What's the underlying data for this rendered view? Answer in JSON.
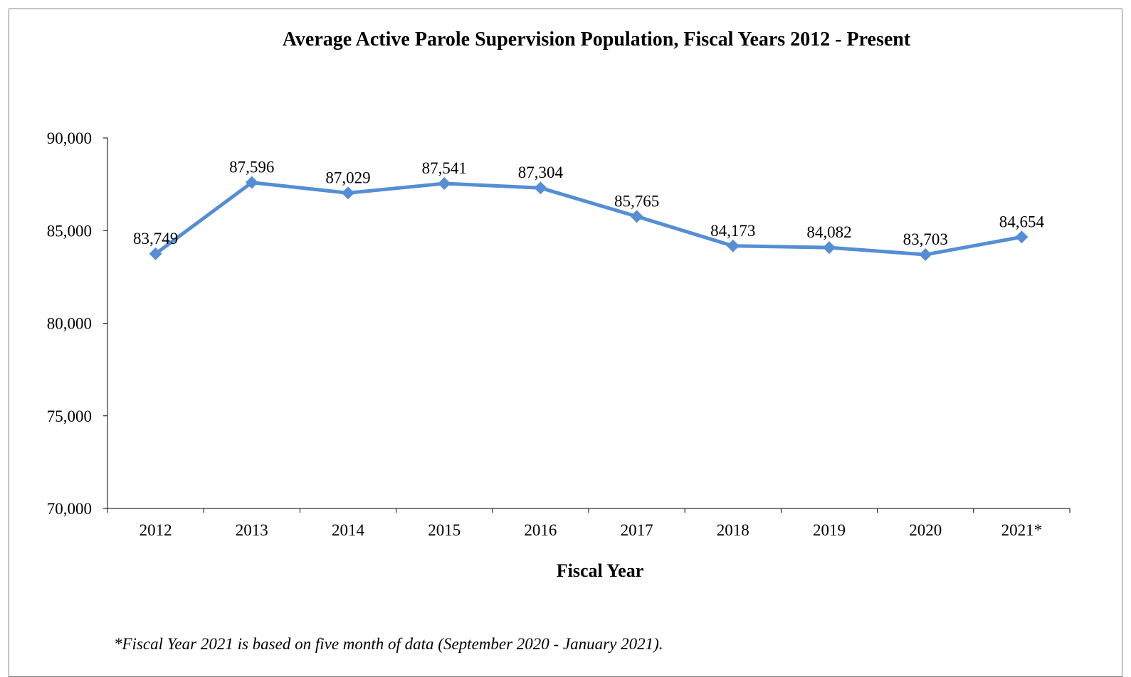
{
  "chart_data": {
    "type": "line",
    "title": "Average Active Parole Supervision Population, Fiscal Years 2012 - Present",
    "xlabel": "Fiscal Year",
    "ylabel": "",
    "categories": [
      "2012",
      "2013",
      "2014",
      "2015",
      "2016",
      "2017",
      "2018",
      "2019",
      "2020",
      "2021*"
    ],
    "series": [
      {
        "values": [
          83749,
          87596,
          87029,
          87541,
          87304,
          85765,
          84173,
          84082,
          83703,
          84654
        ],
        "labels": [
          "83,749",
          "87,596",
          "87,029",
          "87,541",
          "87,304",
          "85,765",
          "84,173",
          "84,082",
          "83,703",
          "84,654"
        ],
        "color": "#558ed5",
        "marker": "diamond"
      }
    ],
    "ylim": [
      70000,
      90000
    ],
    "yticks": [
      70000,
      75000,
      80000,
      85000,
      90000
    ],
    "ytick_labels": [
      "70,000",
      "75,000",
      "80,000",
      "85,000",
      "90,000"
    ],
    "grid": false,
    "legend": "none",
    "footnote": "*Fiscal Year 2021 is based on five month of data (September 2020 - January 2021)."
  }
}
